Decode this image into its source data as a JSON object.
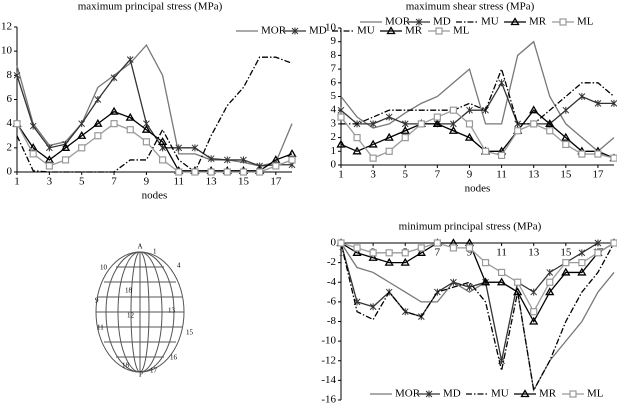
{
  "chart_data": [
    {
      "type": "line",
      "title": "maximum principal stress (MPa)",
      "x_label": "nodes",
      "x": [
        1,
        2,
        3,
        4,
        5,
        6,
        7,
        8,
        9,
        10,
        11,
        12,
        13,
        14,
        15,
        16,
        17,
        18
      ],
      "xlim": [
        1,
        18
      ],
      "xticks": [
        1,
        3,
        5,
        7,
        9,
        11,
        13,
        15,
        17
      ],
      "ylim": [
        0,
        12
      ],
      "yticks": [
        0,
        2,
        4,
        6,
        8,
        10,
        12
      ],
      "legend": "top-right",
      "xaxis": "bottom",
      "series": [
        {
          "name": "MOR",
          "color": "#777777",
          "marker": "none",
          "dash": "solid",
          "values": [
            8.8,
            4,
            2.2,
            2.5,
            4,
            7,
            8,
            9,
            10.5,
            8,
            1.5,
            1.5,
            1,
            1,
            0.8,
            0.5,
            0.8,
            4
          ]
        },
        {
          "name": "MD",
          "color": "#333333",
          "marker": "star",
          "dash": "solid",
          "values": [
            8,
            3.8,
            2,
            2.3,
            4,
            6,
            7.8,
            9.3,
            4,
            2,
            2,
            2,
            1.1,
            1,
            1,
            0.5,
            0.6,
            0.6
          ]
        },
        {
          "name": "MU",
          "color": "#000000",
          "marker": "none",
          "dash": "dashdot",
          "values": [
            3,
            0.1,
            0,
            0,
            0,
            0,
            0,
            1,
            1,
            3.5,
            1,
            0,
            3,
            5.5,
            7,
            9.5,
            9.5,
            9
          ]
        },
        {
          "name": "MR",
          "color": "#000000",
          "marker": "triangle",
          "dash": "solid",
          "values": [
            4,
            2,
            1,
            2,
            3,
            4,
            5,
            4.5,
            3.5,
            2.5,
            0.1,
            0.1,
            0.1,
            0.1,
            0.1,
            0.1,
            1,
            1.5
          ]
        },
        {
          "name": "ML",
          "color": "#999999",
          "marker": "square",
          "dash": "solid",
          "values": [
            4,
            1.5,
            0.5,
            1,
            2,
            3,
            4,
            3.5,
            2.5,
            1,
            0,
            0,
            0,
            0,
            0,
            0,
            0.5,
            1
          ]
        }
      ]
    },
    {
      "type": "line",
      "title": "maximum shear stress (MPa)",
      "x_label": "nodes",
      "x": [
        1,
        2,
        3,
        4,
        5,
        6,
        7,
        8,
        9,
        10,
        11,
        12,
        13,
        14,
        15,
        16,
        17,
        18
      ],
      "xlim": [
        1,
        18
      ],
      "xticks": [
        1,
        3,
        5,
        7,
        9,
        11,
        13,
        15,
        17
      ],
      "ylim": [
        0,
        10
      ],
      "yticks": [
        0,
        1,
        2,
        3,
        4,
        5,
        6,
        7,
        8,
        9,
        10
      ],
      "legend": "top-right",
      "xaxis": "bottom",
      "series": [
        {
          "name": "MOR",
          "color": "#777777",
          "marker": "none",
          "dash": "solid",
          "values": [
            5,
            3.5,
            2.7,
            3,
            3.8,
            4.5,
            5,
            6,
            7,
            3,
            3,
            8,
            9,
            5,
            3,
            2,
            1,
            2
          ]
        },
        {
          "name": "MD",
          "color": "#333333",
          "marker": "star",
          "dash": "solid",
          "values": [
            4,
            3,
            3,
            3.5,
            3,
            3,
            3,
            3,
            4,
            4,
            6,
            3,
            3,
            3,
            4,
            5,
            4.5,
            4.5
          ]
        },
        {
          "name": "MU",
          "color": "#000000",
          "marker": "none",
          "dash": "dashdot",
          "values": [
            3,
            3,
            3.5,
            4,
            4,
            4,
            4,
            4,
            4.5,
            4,
            7,
            3,
            3,
            4,
            5,
            6,
            6,
            5
          ]
        },
        {
          "name": "MR",
          "color": "#000000",
          "marker": "triangle",
          "dash": "solid",
          "values": [
            1.5,
            1,
            1.5,
            2,
            2.5,
            3,
            3,
            2.5,
            2,
            1,
            1,
            2.5,
            4,
            3,
            2,
            1,
            1,
            0.5
          ]
        },
        {
          "name": "ML",
          "color": "#999999",
          "marker": "square",
          "dash": "solid",
          "values": [
            3.5,
            2,
            0.5,
            1,
            2,
            3,
            3.5,
            4,
            3,
            1,
            0.7,
            2.5,
            3,
            2.5,
            1.5,
            0.8,
            0.8,
            0.5
          ]
        }
      ]
    },
    {
      "type": "line",
      "title": "minimum principal stress (MPa)",
      "x": [
        1,
        2,
        3,
        4,
        5,
        6,
        7,
        8,
        9,
        10,
        11,
        12,
        13,
        14,
        15,
        16,
        17,
        18
      ],
      "xlim": [
        1,
        18
      ],
      "xticks": [
        1,
        3,
        5,
        7,
        9,
        11,
        13,
        15,
        17
      ],
      "ylim": [
        -16,
        0
      ],
      "yticks": [
        0,
        -2,
        -4,
        -6,
        -8,
        -10,
        -12,
        -14,
        -16
      ],
      "legend": "bottom",
      "xaxis": "top",
      "series": [
        {
          "name": "MOR",
          "color": "#777777",
          "marker": "none",
          "dash": "solid",
          "values": [
            0,
            -2.5,
            -3,
            -4,
            -5,
            -6,
            -6,
            -4,
            -5,
            -4,
            -4,
            -5,
            -15,
            -12,
            -10,
            -8,
            -5,
            -3
          ]
        },
        {
          "name": "MD",
          "color": "#333333",
          "marker": "star",
          "dash": "solid",
          "values": [
            0,
            -6,
            -6.5,
            -5,
            -7,
            -7.5,
            -5,
            -4,
            -4.5,
            -4,
            -12,
            -4,
            -5,
            -3,
            -2,
            -1,
            0,
            0
          ]
        },
        {
          "name": "MU",
          "color": "#000000",
          "marker": "none",
          "dash": "dashdot",
          "values": [
            0,
            -7,
            -7.8,
            -5,
            -7,
            -7.5,
            -5,
            -4.5,
            -4,
            -6,
            -13,
            -5,
            -15,
            -12,
            -8,
            -5,
            -3,
            0
          ]
        },
        {
          "name": "MR",
          "color": "#000000",
          "marker": "triangle",
          "dash": "solid",
          "values": [
            0,
            -1,
            -1.5,
            -2,
            -2,
            -1,
            0,
            0,
            0,
            -4,
            -4,
            -5,
            -8,
            -5,
            -3,
            -3,
            -1,
            0
          ]
        },
        {
          "name": "ML",
          "color": "#999999",
          "marker": "square",
          "dash": "solid",
          "values": [
            0,
            -0.5,
            -1,
            -1,
            -1,
            -0.5,
            0,
            -0.5,
            -0.5,
            -2,
            -3,
            -4,
            -7,
            -4,
            -2,
            -2,
            -1,
            0
          ]
        }
      ]
    }
  ],
  "diagram": {
    "labels": [
      "A",
      "1",
      "4",
      "10",
      "18",
      "9",
      "12",
      "13",
      "11",
      "15",
      "16",
      "18",
      "P",
      "17"
    ]
  }
}
